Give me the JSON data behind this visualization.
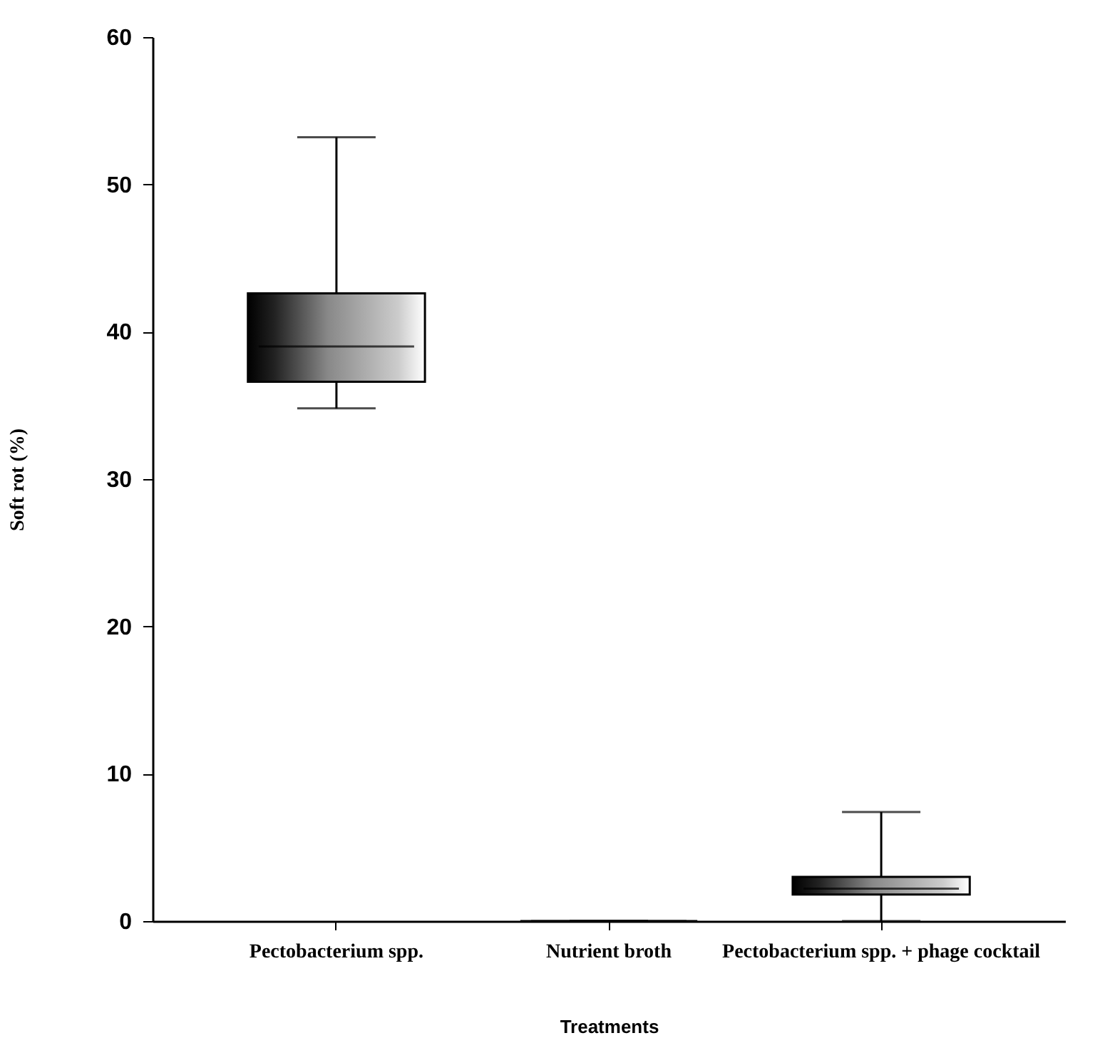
{
  "chart_data": {
    "type": "box",
    "xlabel": "Treatments",
    "ylabel": "Soft rot (%)",
    "categories": [
      "Pectobacterium spp.",
      "Nutrient broth",
      "Pectobacterium spp. + phage cocktail"
    ],
    "boxes": [
      {
        "low": 34.8,
        "q1": 36.6,
        "median": 39.0,
        "q3": 42.6,
        "high": 53.2
      },
      {
        "low": 0,
        "q1": 0,
        "median": 0,
        "q3": 0,
        "high": 0
      },
      {
        "low": 0,
        "q1": 1.8,
        "median": 2.2,
        "q3": 3.0,
        "high": 7.4
      }
    ],
    "ylim": [
      0,
      60
    ],
    "yticks": [
      0,
      10,
      20,
      30,
      40,
      50,
      60
    ],
    "grid": false
  }
}
